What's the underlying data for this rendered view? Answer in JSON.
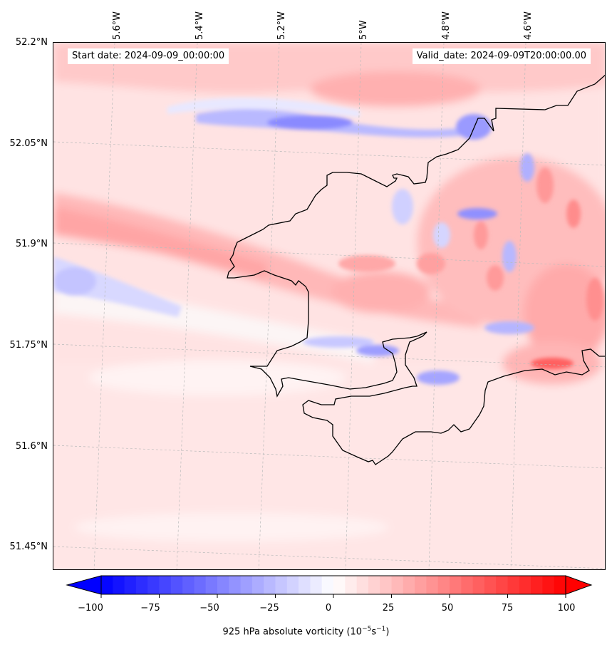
{
  "map": {
    "start_date_text": "Start date: 2024-09-09_00:00:00",
    "valid_date_text": "Valid_date: 2024-09-09T20:00:00.00",
    "lat_labels": [
      "52.2°N",
      "52.05°N",
      "51.9°N",
      "51.75°N",
      "51.6°N",
      "51.45°N"
    ],
    "lon_labels": [
      "5.6°W",
      "5.4°W",
      "5.2°W",
      "5°W",
      "4.8°W",
      "4.6°W"
    ],
    "coastline_color": "#000000",
    "gridline_color": "#bbbbbb"
  },
  "colorbar": {
    "title": "925 hPa absolute vorticity (10",
    "title_sup1": "−5",
    "title_mid": "s",
    "title_sup2": "−1",
    "title_end": ")",
    "ticks": [
      "−100",
      "−75",
      "−50",
      "−25",
      "0",
      "25",
      "50",
      "75",
      "100"
    ],
    "min": -100,
    "max": 100,
    "low_color": "#0000ff",
    "mid_color": "#ffffff",
    "high_color": "#ff0000"
  }
}
